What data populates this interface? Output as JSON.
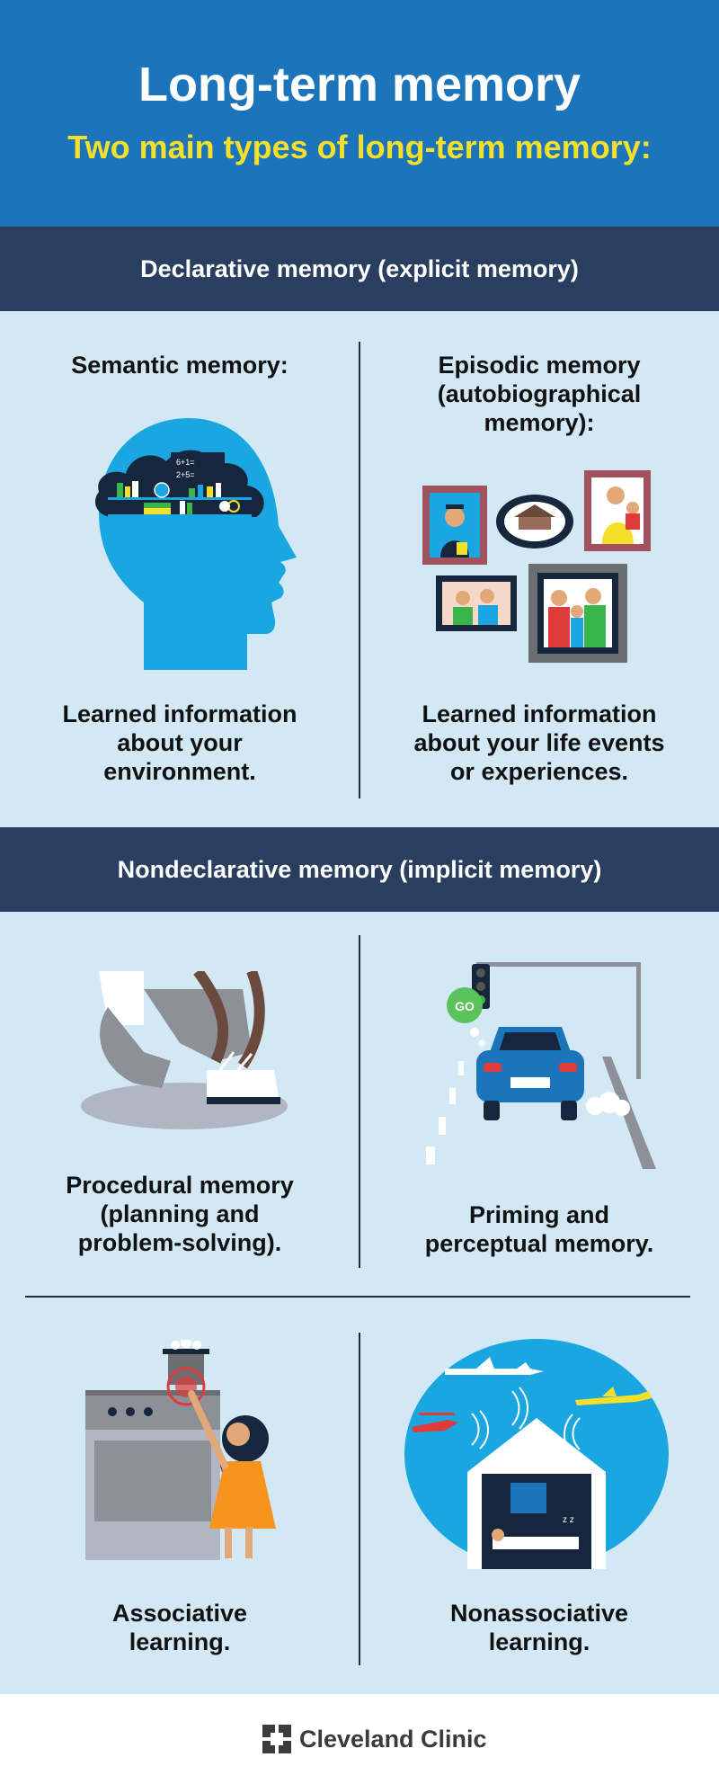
{
  "header": {
    "title": "Long-term memory",
    "subtitle": "Two main types of long-term memory:"
  },
  "declarative": {
    "heading": "Declarative memory (explicit memory)",
    "semantic": {
      "title": "Semantic memory:",
      "description_lines": [
        "Learned information",
        "about your",
        "environment."
      ],
      "illustration_chalkboard": [
        "6+1=",
        "2+5="
      ]
    },
    "episodic": {
      "title_lines": [
        "Episodic memory",
        "(autobiographical",
        "memory):"
      ],
      "description_lines": [
        "Learned information",
        "about your life events",
        "or experiences."
      ]
    }
  },
  "nondeclarative": {
    "heading": "Nondeclarative memory (implicit memory)",
    "procedural": {
      "lines": [
        "Procedural memory",
        "(planning and",
        "problem-solving)."
      ]
    },
    "priming": {
      "lines": [
        "Priming and",
        "perceptual memory."
      ],
      "go_bubble": "GO"
    },
    "associative": {
      "lines": [
        "Associative",
        "learning."
      ]
    },
    "nonassociative": {
      "lines": [
        "Nonassociative",
        "learning."
      ]
    }
  },
  "footer": {
    "brand": "Cleveland Clinic"
  },
  "colors": {
    "header_blue": "#1c74bb",
    "title_yellow": "#f4e02b",
    "band_navy": "#2a3f5f",
    "panel_light": "#d3e8f5",
    "illustration_blue": "#1aa6e0"
  }
}
